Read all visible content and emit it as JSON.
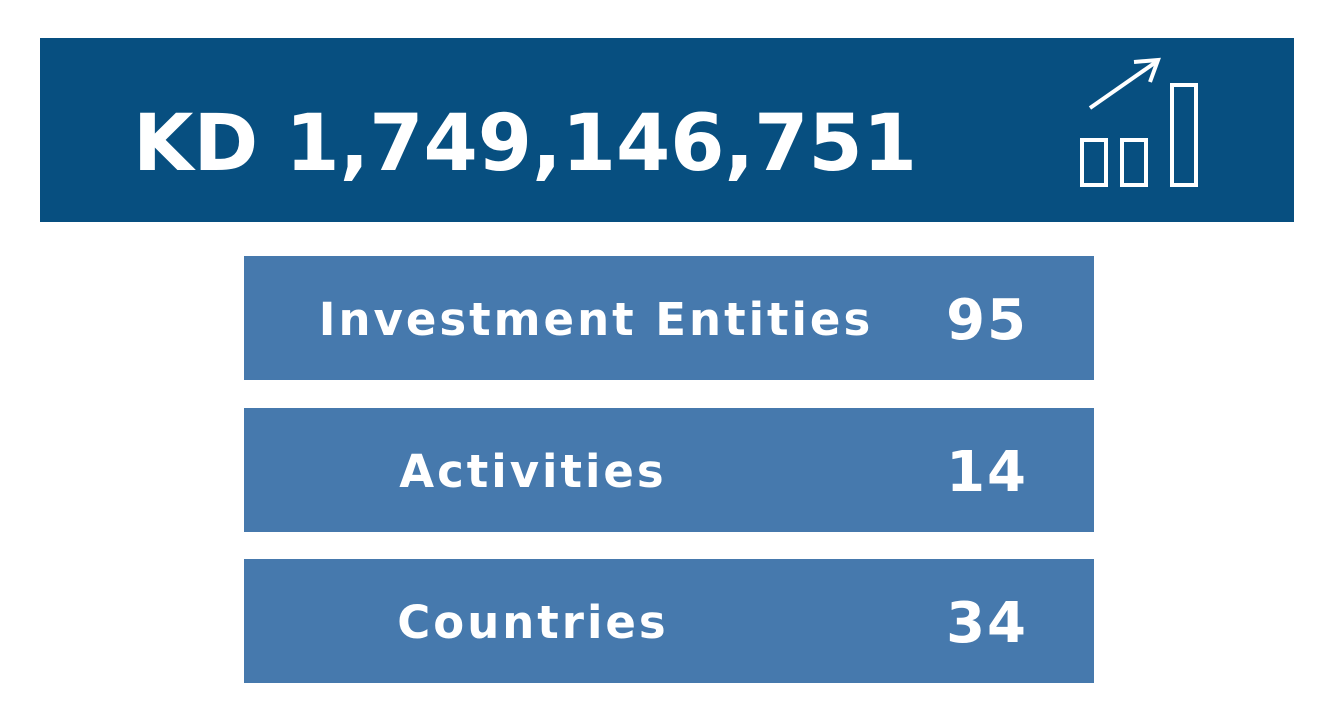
{
  "header": {
    "total": "KD 1,749,146,751"
  },
  "items": [
    {
      "label": "Investment Entities",
      "value": 95
    },
    {
      "label": "Activities",
      "value": 14
    },
    {
      "label": "Countries",
      "value": 34
    }
  ]
}
